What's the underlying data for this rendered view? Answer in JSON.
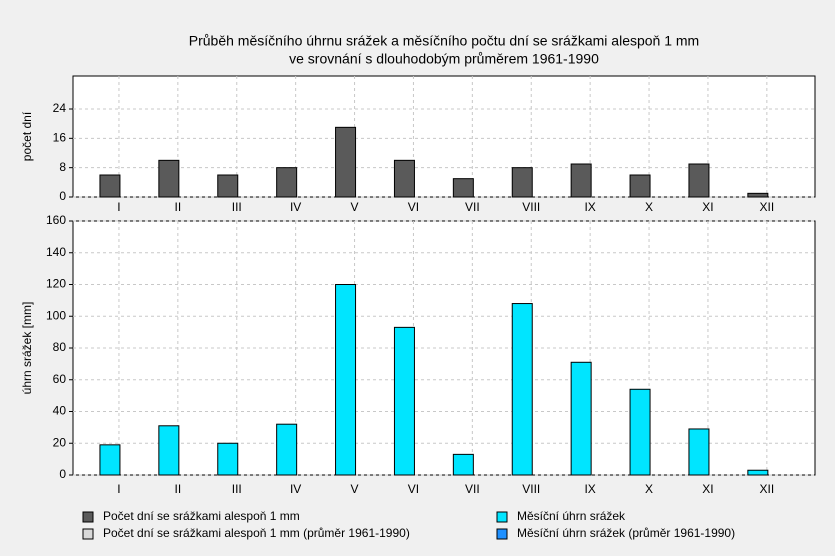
{
  "chart_data": [
    {
      "type": "bar",
      "title": [
        "Průběh měsíčního úhrnu srážek a měsíčního počtu dní se srážkami alespoň 1 mm",
        "ve srovnání s dlouhodobým průměrem 1961-1990"
      ],
      "y_label": "počet dní",
      "categories": [
        "I",
        "II",
        "III",
        "IV",
        "V",
        "VI",
        "VII",
        "VIII",
        "IX",
        "X",
        "XI",
        "XII"
      ],
      "series": [
        {
          "name": "Počet dní se srážkami alespoň 1 mm",
          "color": "#5a5a5a",
          "values": [
            6,
            10,
            6,
            8,
            19,
            10,
            5,
            8,
            9,
            6,
            9,
            1
          ]
        },
        {
          "name": "Počet dní se srážkami alespoň 1 mm (průměr 1961-1990)",
          "color": "#d8d8d8",
          "values": [
            null,
            null,
            null,
            null,
            null,
            null,
            null,
            null,
            null,
            null,
            null,
            null
          ]
        }
      ],
      "ylim": [
        0,
        33
      ],
      "yticks": [
        0,
        8,
        16,
        24
      ],
      "grid": true
    },
    {
      "type": "bar",
      "y_label": "úhrn srážek [mm]",
      "categories": [
        "I",
        "II",
        "III",
        "IV",
        "V",
        "VI",
        "VII",
        "VIII",
        "IX",
        "X",
        "XI",
        "XII"
      ],
      "series": [
        {
          "name": "Měsíční úhrn srážek",
          "color": "#00e5ff",
          "values": [
            19,
            31,
            20,
            32,
            120,
            93,
            13,
            108,
            71,
            54,
            29,
            3
          ]
        },
        {
          "name": "Měsíční úhrn srážek (průměr 1961-1990)",
          "color": "#1e90ff",
          "values": [
            null,
            null,
            null,
            null,
            null,
            null,
            null,
            null,
            null,
            null,
            null,
            null
          ]
        }
      ],
      "ylim": [
        0,
        160
      ],
      "yticks": [
        0,
        20,
        40,
        60,
        80,
        100,
        120,
        140,
        160
      ],
      "grid": true
    }
  ]
}
